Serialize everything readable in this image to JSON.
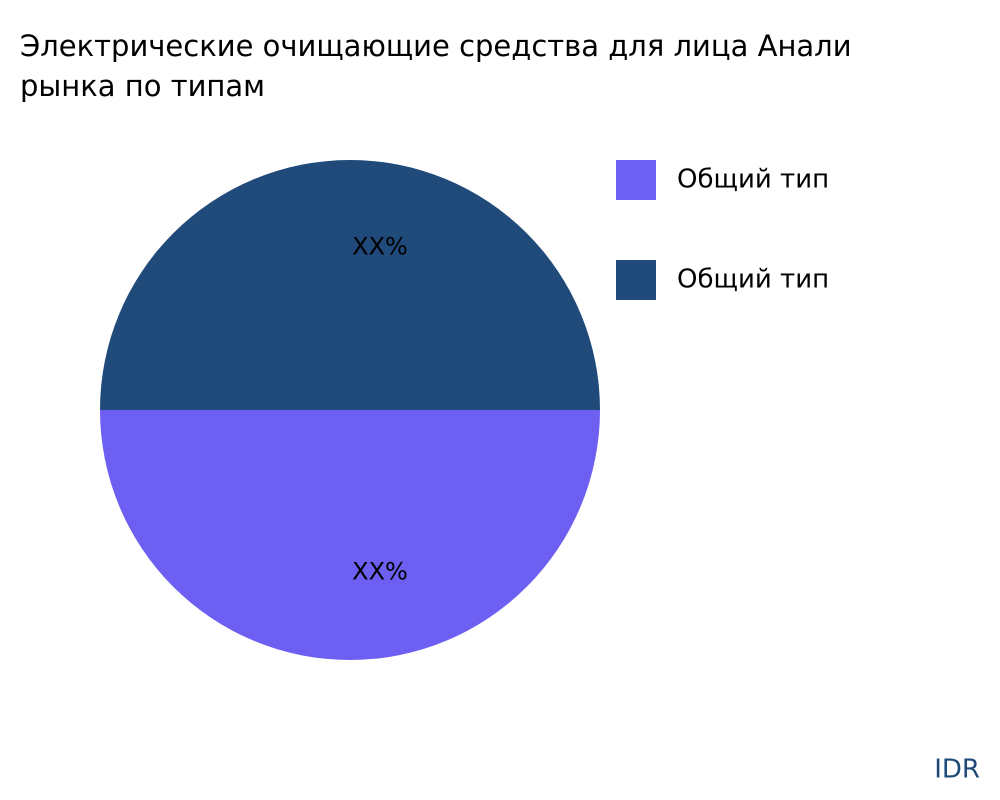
{
  "chart_data": {
    "type": "pie",
    "title": [
      "Электрические очищающие средства для лица Анали",
      "рынка по типам"
    ],
    "categories": [
      "Общий тип",
      "Общий тип"
    ],
    "values": [
      50,
      50
    ],
    "value_labels": [
      "XX%",
      "XX%"
    ],
    "colors": [
      "#6c5ff2",
      "#1f4a7a"
    ],
    "legend": "top-right",
    "watermark": "IDR"
  }
}
